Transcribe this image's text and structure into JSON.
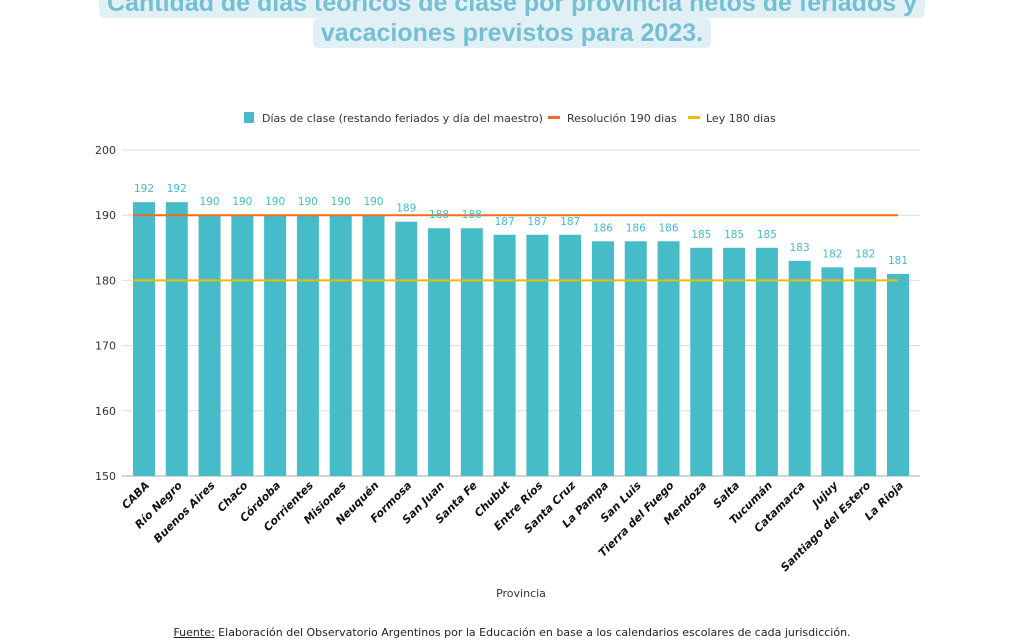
{
  "title_line1": "Cantidad de días teóricos de clase por provincia netos de feriados y",
  "title_line2": "vacaciones previstos para 2023.",
  "source_label": "Fuente:",
  "source_text": " Elaboración del Observatorio Argentinos por la Educación en base a los calendarios escolares de cada jurisdicción.",
  "colors": {
    "bar": "#45bcc7",
    "line190": "#f26b21",
    "line180": "#f5b800",
    "label": "#45bcc7",
    "title": "#74bfd3"
  },
  "chart_data": {
    "type": "bar",
    "title": "Cantidad de días teóricos de clase por provincia netos de feriados y vacaciones previstos para 2023.",
    "xlabel": "Provincia",
    "ylabel": "",
    "ylim": [
      150,
      200
    ],
    "yticks": [
      150,
      160,
      170,
      180,
      190,
      200
    ],
    "grid": true,
    "legend_position": "top",
    "categories": [
      "CABA",
      "Río Negro",
      "Buenos Aires",
      "Chaco",
      "Córdoba",
      "Corrientes",
      "Misiones",
      "Neuquén",
      "Formosa",
      "San Juan",
      "Santa Fe",
      "Chubut",
      "Entre Ríos",
      "Santa Cruz",
      "La Pampa",
      "San Luis",
      "Tierra del Fuego",
      "Mendoza",
      "Salta",
      "Tucumán",
      "Catamarca",
      "Jujuy",
      "Santiago del Estero",
      "La Rioja"
    ],
    "series": [
      {
        "name": "Días de clase (restando feriados y día del maestro)",
        "kind": "bar",
        "values": [
          192,
          192,
          190,
          190,
          190,
          190,
          190,
          190,
          189,
          188,
          188,
          187,
          187,
          187,
          186,
          186,
          186,
          185,
          185,
          185,
          183,
          182,
          182,
          181
        ]
      },
      {
        "name": "Resolución 190 dias",
        "kind": "line",
        "value": 190
      },
      {
        "name": "Ley 180 dias",
        "kind": "line",
        "value": 180
      }
    ]
  }
}
